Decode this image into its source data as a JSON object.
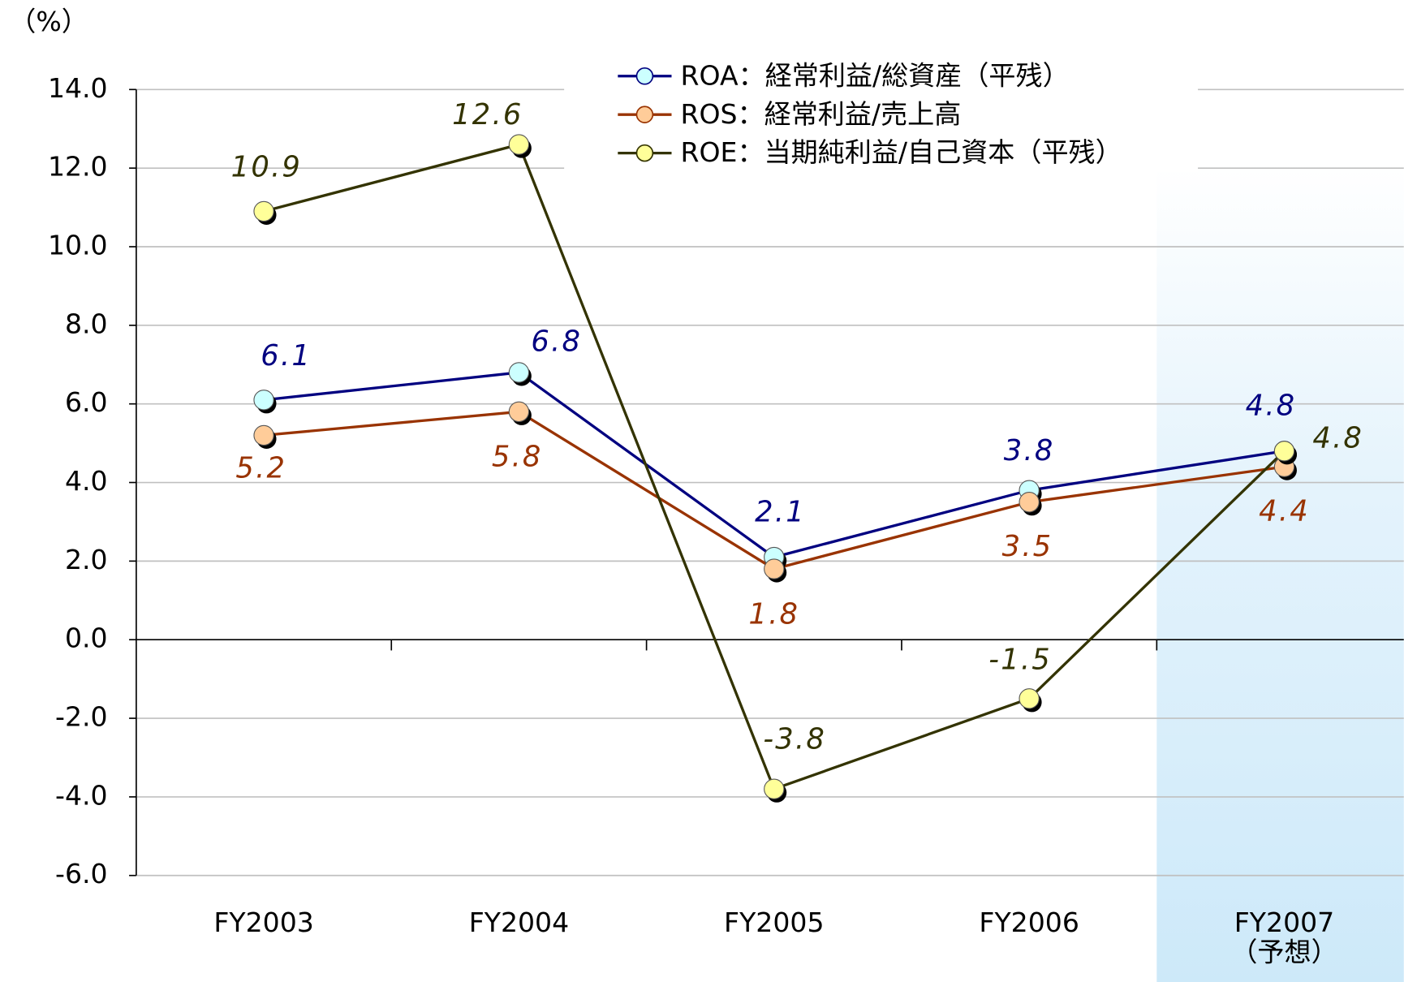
{
  "chart_data": {
    "type": "line",
    "y_label": "（%）",
    "categories": [
      "FY2003",
      "FY2004",
      "FY2005",
      "FY2006",
      "FY2007\n（予想）"
    ],
    "series": [
      {
        "name": "ROA：経常利益/総資産（平残）",
        "color": "#000080",
        "marker_color": "#ccffff",
        "values": [
          6.1,
          6.8,
          2.1,
          3.8,
          4.8
        ]
      },
      {
        "name": "ROS：経常利益/売上高",
        "color": "#993300",
        "marker_color": "#ffcc99",
        "values": [
          5.2,
          5.8,
          1.8,
          3.5,
          4.4
        ]
      },
      {
        "name": "ROE：当期純利益/自己資本（平残）",
        "color": "#333300",
        "marker_color": "#ffff99",
        "values": [
          10.9,
          12.6,
          -3.8,
          -1.5,
          4.8
        ]
      }
    ],
    "ylim": [
      -6,
      14
    ],
    "yticks": [
      {
        "value": -6,
        "label": "-6.0"
      },
      {
        "value": -4,
        "label": "-4.0"
      },
      {
        "value": -2,
        "label": "-2.0"
      },
      {
        "value": 0,
        "label": "0.0"
      },
      {
        "value": 2,
        "label": "2.0"
      },
      {
        "value": 4,
        "label": "4.0"
      },
      {
        "value": 6,
        "label": "6.0"
      },
      {
        "value": 8,
        "label": "8.0"
      },
      {
        "value": 10,
        "label": "10.0"
      },
      {
        "value": 12,
        "label": "12.0"
      },
      {
        "value": 14,
        "label": "14.0"
      }
    ],
    "grid": true
  }
}
